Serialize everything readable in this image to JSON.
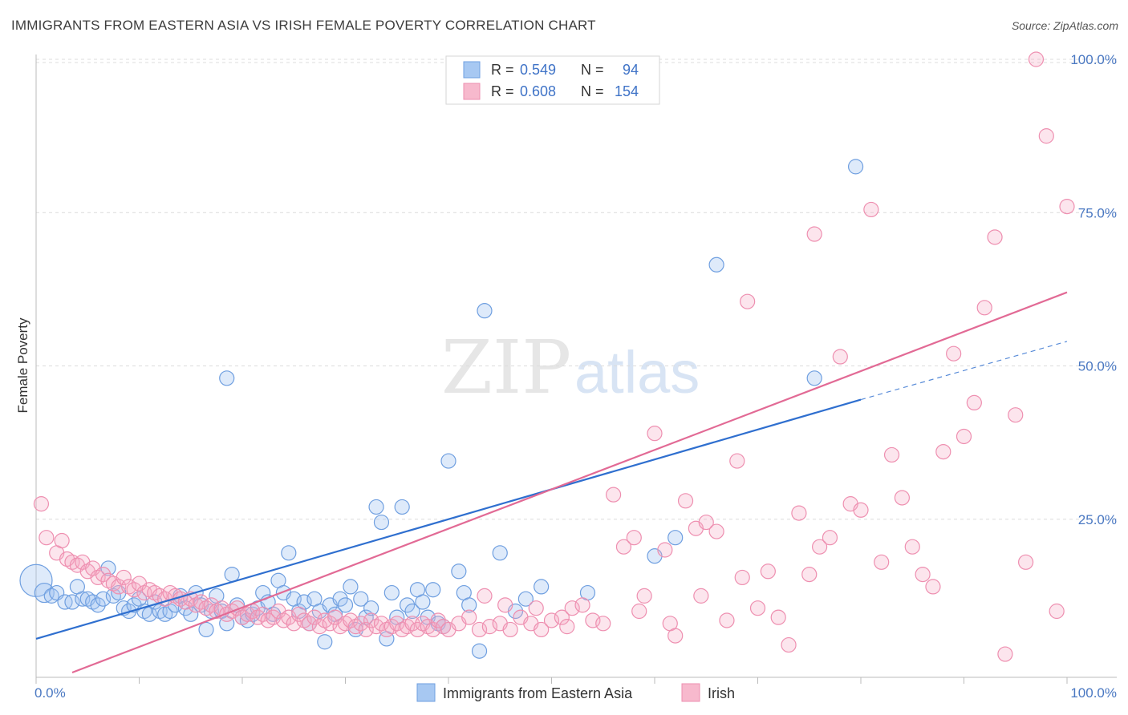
{
  "title": "IMMIGRANTS FROM EASTERN ASIA VS IRISH FEMALE POVERTY CORRELATION CHART",
  "source": "Source: ZipAtlas.com",
  "watermark": {
    "zip": "ZIP",
    "atlas": "atlas"
  },
  "colors": {
    "blue_fill": "#a7c8f2",
    "blue_stroke": "#6f9fe0",
    "blue_line": "#2f6fcf",
    "pink_fill": "#f7b9cd",
    "pink_stroke": "#ee8fb0",
    "pink_line": "#e26a95",
    "tick_label": "#4a78c2"
  },
  "legend": {
    "rows": [
      {
        "r_label": "R =",
        "r_value": "0.549",
        "n_label": "N =",
        "n_value": "94",
        "series": "blue"
      },
      {
        "r_label": "R =",
        "r_value": "0.608",
        "n_label": "N =",
        "n_value": "154",
        "series": "pink"
      }
    ]
  },
  "bottom_legend": [
    {
      "label": "Immigrants from Eastern Asia",
      "series": "blue"
    },
    {
      "label": "Irish",
      "series": "pink"
    }
  ],
  "chart_data": {
    "type": "scatter",
    "xlabel": "",
    "ylabel": "Female Poverty",
    "xlim": [
      0,
      100
    ],
    "ylim": [
      0,
      100
    ],
    "x_tick_labels": [
      "0.0%",
      "100.0%"
    ],
    "y_ticks": [
      25,
      50,
      75,
      100
    ],
    "y_tick_labels": [
      "25.0%",
      "50.0%",
      "75.0%",
      "100.0%"
    ],
    "grid": true,
    "legend_position": "top-center",
    "series": [
      {
        "name": "Immigrants from Eastern Asia",
        "color": "#6f9fe0",
        "trend": {
          "x0": 0,
          "y0": 5.5,
          "x1": 80,
          "y1": 44.5,
          "dash_to": [
            100,
            54
          ]
        },
        "points": [
          [
            0,
            15,
            20
          ],
          [
            0.8,
            13,
            12
          ],
          [
            1.5,
            12.5,
            9
          ],
          [
            2,
            13,
            9
          ],
          [
            2.8,
            11.5,
            9
          ],
          [
            3.5,
            11.5,
            9
          ],
          [
            4,
            14,
            9
          ],
          [
            4.5,
            12,
            9
          ],
          [
            5,
            12,
            9
          ],
          [
            5.5,
            11.5,
            9
          ],
          [
            6,
            11,
            9
          ],
          [
            6.5,
            12,
            9
          ],
          [
            7,
            17,
            9
          ],
          [
            7.5,
            12.5,
            9
          ],
          [
            8,
            13,
            9
          ],
          [
            8.5,
            10.5,
            9
          ],
          [
            9,
            10,
            9
          ],
          [
            9.5,
            11,
            9
          ],
          [
            10,
            12,
            9
          ],
          [
            10.5,
            10,
            9
          ],
          [
            11,
            9.5,
            9
          ],
          [
            11.5,
            11.5,
            9
          ],
          [
            12,
            10,
            9
          ],
          [
            12.5,
            9.5,
            9
          ],
          [
            13,
            10,
            9
          ],
          [
            13.5,
            11,
            9
          ],
          [
            14,
            12.5,
            9
          ],
          [
            14.5,
            10.5,
            9
          ],
          [
            15,
            9.5,
            9
          ],
          [
            15.5,
            13,
            9
          ],
          [
            16,
            11,
            9
          ],
          [
            16.5,
            7,
            9
          ],
          [
            17,
            10,
            9
          ],
          [
            17.5,
            12.5,
            9
          ],
          [
            18,
            10,
            9
          ],
          [
            18.5,
            8,
            9
          ],
          [
            19,
            16,
            9
          ],
          [
            19.5,
            11,
            9
          ],
          [
            20,
            9,
            9
          ],
          [
            20.5,
            8.5,
            9
          ],
          [
            21,
            9.5,
            9
          ],
          [
            21.5,
            10.5,
            9
          ],
          [
            22,
            13,
            9
          ],
          [
            22.5,
            11.5,
            9
          ],
          [
            23,
            9.5,
            9
          ],
          [
            23.5,
            15,
            9
          ],
          [
            24,
            13,
            9
          ],
          [
            24.5,
            19.5,
            9
          ],
          [
            25,
            12,
            9
          ],
          [
            25.5,
            10,
            9
          ],
          [
            26,
            11.5,
            9
          ],
          [
            26.5,
            8,
            9
          ],
          [
            27,
            12,
            9
          ],
          [
            27.5,
            10,
            9
          ],
          [
            28,
            5,
            9
          ],
          [
            28.5,
            11,
            9
          ],
          [
            29,
            9.5,
            9
          ],
          [
            29.5,
            12,
            9
          ],
          [
            30,
            11,
            9
          ],
          [
            30.5,
            14,
            9
          ],
          [
            31,
            7,
            9
          ],
          [
            31.5,
            12,
            9
          ],
          [
            32,
            9,
            9
          ],
          [
            32.5,
            10.5,
            9
          ],
          [
            33,
            27,
            9
          ],
          [
            33.5,
            24.5,
            9
          ],
          [
            34,
            5.5,
            9
          ],
          [
            34.5,
            13,
            9
          ],
          [
            35,
            9,
            9
          ],
          [
            35.5,
            27,
            9
          ],
          [
            36,
            11,
            9
          ],
          [
            36.5,
            10,
            9
          ],
          [
            37,
            13.5,
            9
          ],
          [
            37.5,
            11.5,
            9
          ],
          [
            38,
            9,
            9
          ],
          [
            38.5,
            13.5,
            9
          ],
          [
            39,
            8,
            9
          ],
          [
            39.5,
            7.5,
            9
          ],
          [
            40,
            34.5,
            9
          ],
          [
            41,
            16.5,
            9
          ],
          [
            41.5,
            13,
            9
          ],
          [
            42,
            11,
            9
          ],
          [
            43,
            3.5,
            9
          ],
          [
            43.5,
            59,
            9
          ],
          [
            45,
            19.5,
            9
          ],
          [
            46.5,
            10,
            9
          ],
          [
            47.5,
            12,
            9
          ],
          [
            49,
            14,
            9
          ],
          [
            53.5,
            13,
            9
          ],
          [
            60,
            19,
            9
          ],
          [
            62,
            22,
            9
          ],
          [
            66,
            66.5,
            9
          ],
          [
            75.5,
            48,
            9
          ],
          [
            79.5,
            82.5,
            9
          ],
          [
            18.5,
            48,
            9
          ]
        ]
      },
      {
        "name": "Irish",
        "color": "#ee8fb0",
        "trend": {
          "x0": 3.5,
          "y0": 0,
          "x1": 100,
          "y1": 62
        },
        "points": [
          [
            0.5,
            27.5,
            9
          ],
          [
            1,
            22,
            9
          ],
          [
            2,
            19.5,
            9
          ],
          [
            2.5,
            21.5,
            9
          ],
          [
            3,
            18.5,
            9
          ],
          [
            3.5,
            18,
            9
          ],
          [
            4,
            17.5,
            9
          ],
          [
            4.5,
            18,
            9
          ],
          [
            5,
            16.5,
            9
          ],
          [
            5.5,
            17,
            9
          ],
          [
            6,
            15.5,
            9
          ],
          [
            6.5,
            16,
            9
          ],
          [
            7,
            15,
            9
          ],
          [
            7.5,
            14.5,
            9
          ],
          [
            8,
            14,
            9
          ],
          [
            8.5,
            15.5,
            9
          ],
          [
            9,
            14,
            9
          ],
          [
            9.5,
            13.5,
            9
          ],
          [
            10,
            14.5,
            9
          ],
          [
            10.5,
            13,
            9
          ],
          [
            11,
            13.5,
            9
          ],
          [
            11.5,
            13,
            9
          ],
          [
            12,
            12.5,
            9
          ],
          [
            12.5,
            12,
            9
          ],
          [
            13,
            13,
            9
          ],
          [
            13.5,
            12.5,
            9
          ],
          [
            14,
            12,
            9
          ],
          [
            14.5,
            11.5,
            9
          ],
          [
            15,
            12,
            9
          ],
          [
            15.5,
            11,
            9
          ],
          [
            16,
            11.5,
            9
          ],
          [
            16.5,
            10.5,
            9
          ],
          [
            17,
            11,
            9
          ],
          [
            17.5,
            10,
            9
          ],
          [
            18,
            10.5,
            9
          ],
          [
            18.5,
            9.5,
            9
          ],
          [
            19,
            10,
            9
          ],
          [
            19.5,
            10.5,
            9
          ],
          [
            20,
            9,
            9
          ],
          [
            20.5,
            9.5,
            9
          ],
          [
            21,
            10,
            9
          ],
          [
            21.5,
            9,
            9
          ],
          [
            22,
            9.5,
            9
          ],
          [
            22.5,
            8.5,
            9
          ],
          [
            23,
            9,
            9
          ],
          [
            23.5,
            10,
            9
          ],
          [
            24,
            8.5,
            9
          ],
          [
            24.5,
            9,
            9
          ],
          [
            25,
            8,
            9
          ],
          [
            25.5,
            9.5,
            9
          ],
          [
            26,
            8.5,
            9
          ],
          [
            26.5,
            8,
            9
          ],
          [
            27,
            9,
            9
          ],
          [
            27.5,
            7.5,
            9
          ],
          [
            28,
            8.5,
            9
          ],
          [
            28.5,
            8,
            9
          ],
          [
            29,
            9,
            9
          ],
          [
            29.5,
            7.5,
            9
          ],
          [
            30,
            8,
            9
          ],
          [
            30.5,
            8.5,
            9
          ],
          [
            31,
            7.5,
            9
          ],
          [
            31.5,
            8,
            9
          ],
          [
            32,
            7,
            9
          ],
          [
            32.5,
            8.5,
            9
          ],
          [
            33,
            7.5,
            9
          ],
          [
            33.5,
            8,
            9
          ],
          [
            34,
            7,
            9
          ],
          [
            34.5,
            7.5,
            9
          ],
          [
            35,
            8,
            9
          ],
          [
            35.5,
            7,
            9
          ],
          [
            36,
            7.5,
            9
          ],
          [
            36.5,
            8,
            9
          ],
          [
            37,
            7,
            9
          ],
          [
            37.5,
            8,
            9
          ],
          [
            38,
            7.5,
            9
          ],
          [
            38.5,
            7,
            9
          ],
          [
            39,
            8.5,
            9
          ],
          [
            39.5,
            7.5,
            9
          ],
          [
            40,
            7,
            9
          ],
          [
            41,
            8,
            9
          ],
          [
            42,
            9,
            9
          ],
          [
            43,
            7,
            9
          ],
          [
            43.5,
            12.5,
            9
          ],
          [
            44,
            7.5,
            9
          ],
          [
            45,
            8,
            9
          ],
          [
            45.5,
            11,
            9
          ],
          [
            46,
            7,
            9
          ],
          [
            47,
            9,
            9
          ],
          [
            48,
            8,
            9
          ],
          [
            48.5,
            10.5,
            9
          ],
          [
            49,
            7,
            9
          ],
          [
            50,
            8.5,
            9
          ],
          [
            51,
            9,
            9
          ],
          [
            51.5,
            7.5,
            9
          ],
          [
            52,
            10.5,
            9
          ],
          [
            53,
            11,
            9
          ],
          [
            54,
            8.5,
            9
          ],
          [
            55,
            8,
            9
          ],
          [
            56,
            29,
            9
          ],
          [
            57,
            20.5,
            9
          ],
          [
            58,
            22,
            9
          ],
          [
            58.5,
            10,
            9
          ],
          [
            59,
            12.5,
            9
          ],
          [
            60,
            39,
            9
          ],
          [
            61,
            20,
            9
          ],
          [
            61.5,
            8,
            9
          ],
          [
            62,
            6,
            9
          ],
          [
            63,
            28,
            9
          ],
          [
            64,
            23.5,
            9
          ],
          [
            64.5,
            12.5,
            9
          ],
          [
            65,
            24.5,
            9
          ],
          [
            66,
            23,
            9
          ],
          [
            67,
            8.5,
            9
          ],
          [
            68,
            34.5,
            9
          ],
          [
            68.5,
            15.5,
            9
          ],
          [
            69,
            60.5,
            9
          ],
          [
            70,
            10.5,
            9
          ],
          [
            71,
            16.5,
            9
          ],
          [
            72,
            9,
            9
          ],
          [
            73,
            4.5,
            9
          ],
          [
            74,
            26,
            9
          ],
          [
            75,
            16,
            9
          ],
          [
            75.5,
            71.5,
            9
          ],
          [
            76,
            20.5,
            9
          ],
          [
            77,
            22,
            9
          ],
          [
            78,
            51.5,
            9
          ],
          [
            79,
            27.5,
            9
          ],
          [
            80,
            26.5,
            9
          ],
          [
            81,
            75.5,
            9
          ],
          [
            82,
            18,
            9
          ],
          [
            83,
            35.5,
            9
          ],
          [
            84,
            28.5,
            9
          ],
          [
            85,
            20.5,
            9
          ],
          [
            86,
            16,
            9
          ],
          [
            87,
            14,
            9
          ],
          [
            88,
            36,
            9
          ],
          [
            89,
            52,
            9
          ],
          [
            90,
            38.5,
            9
          ],
          [
            91,
            44,
            9
          ],
          [
            92,
            59.5,
            9
          ],
          [
            93,
            71,
            9
          ],
          [
            94,
            3,
            9
          ],
          [
            95,
            42,
            9
          ],
          [
            96,
            18,
            9
          ],
          [
            97,
            100,
            9
          ],
          [
            98,
            87.5,
            9
          ],
          [
            99,
            10,
            9
          ],
          [
            100,
            76,
            9
          ]
        ]
      }
    ]
  }
}
